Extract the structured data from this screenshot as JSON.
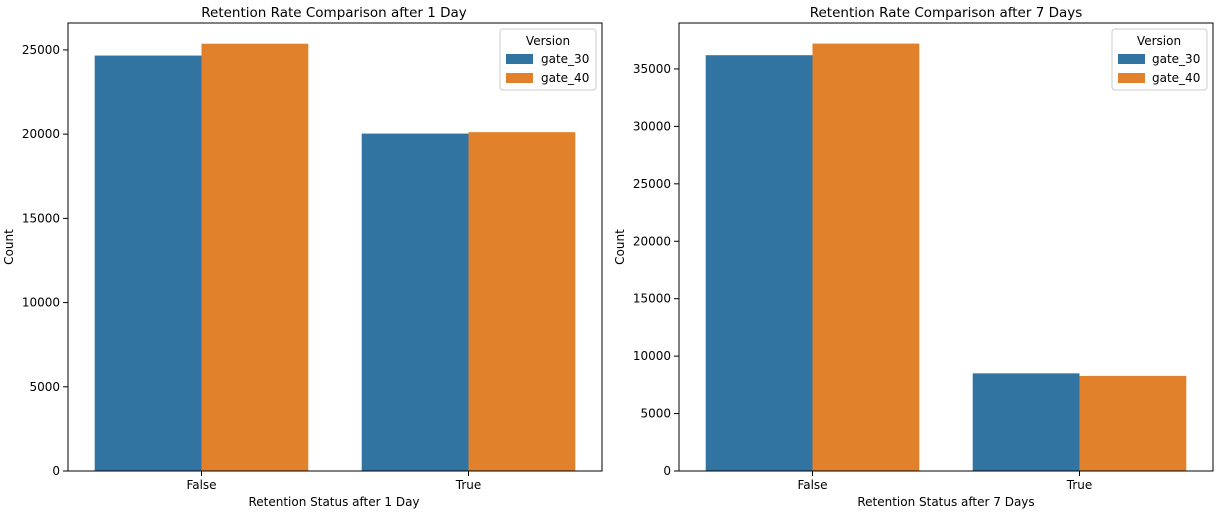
{
  "colors": {
    "gate_30": "#3274a1",
    "gate_40": "#e1812c"
  },
  "chart_data": [
    {
      "type": "bar",
      "title": "Retention Rate Comparison after 1 Day",
      "xlabel": "Retention Status after 1 Day",
      "ylabel": "Count",
      "categories": [
        "False",
        "True"
      ],
      "series": [
        {
          "name": "gate_30",
          "values": [
            24666,
            20034
          ]
        },
        {
          "name": "gate_40",
          "values": [
            25370,
            20119
          ]
        }
      ],
      "ylim": [
        0,
        26600
      ],
      "yticks": [
        0,
        5000,
        10000,
        15000,
        20000,
        25000
      ],
      "ytick_labels": [
        "0",
        "5000",
        "10000",
        "15000",
        "20000",
        "25000"
      ],
      "legend": {
        "title": "Version",
        "placement": "top-right",
        "labels": [
          "gate_30",
          "gate_40"
        ]
      },
      "grid": false
    },
    {
      "type": "bar",
      "title": "Retention Rate Comparison after 7 Days",
      "xlabel": "Retention Status after 7 Days",
      "ylabel": "Count",
      "categories": [
        "False",
        "True"
      ],
      "series": [
        {
          "name": "gate_30",
          "values": [
            36198,
            8502
          ]
        },
        {
          "name": "gate_40",
          "values": [
            37210,
            8279
          ]
        }
      ],
      "ylim": [
        0,
        39000
      ],
      "yticks": [
        0,
        5000,
        10000,
        15000,
        20000,
        25000,
        30000,
        35000
      ],
      "ytick_labels": [
        "0",
        "5000",
        "10000",
        "15000",
        "20000",
        "25000",
        "30000",
        "35000"
      ],
      "legend": {
        "title": "Version",
        "placement": "top-right",
        "labels": [
          "gate_30",
          "gate_40"
        ]
      },
      "grid": false
    }
  ]
}
